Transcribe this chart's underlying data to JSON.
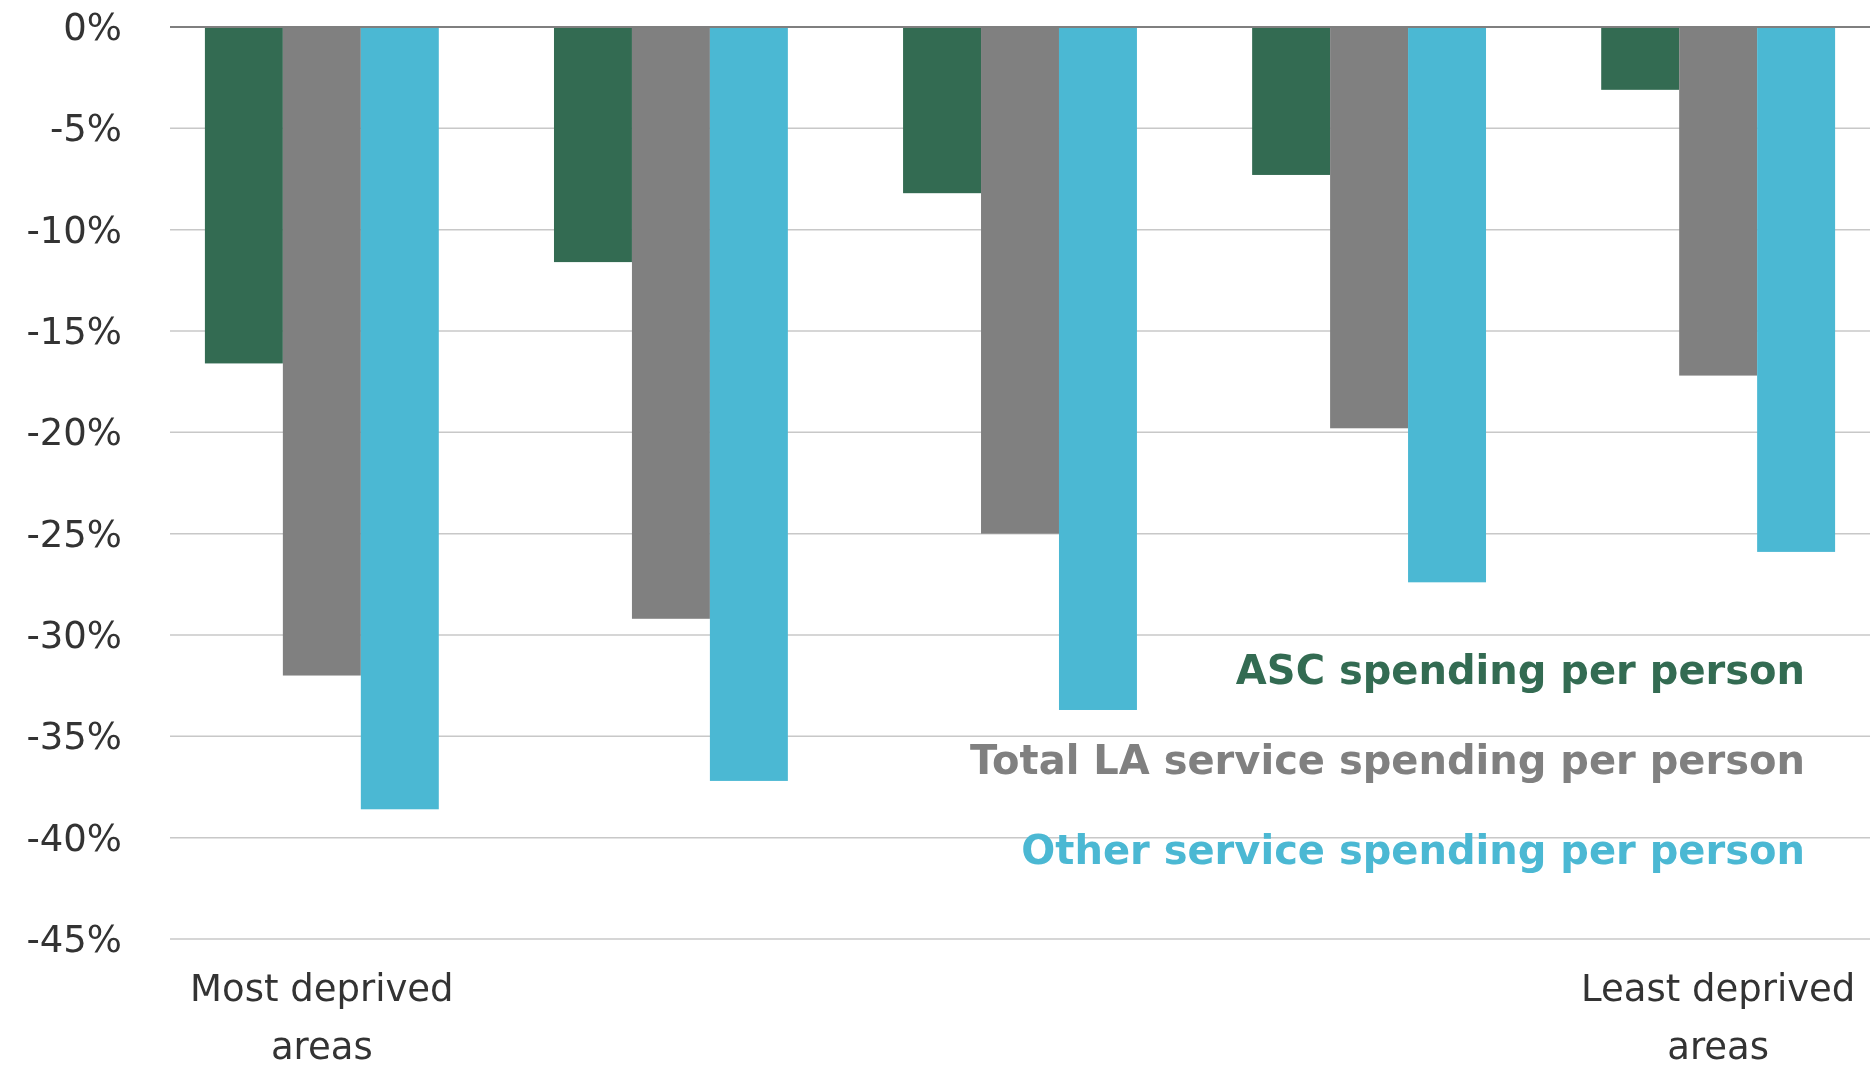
{
  "chart_data": {
    "type": "bar",
    "categories": [
      "Most deprived areas",
      null,
      null,
      null,
      "Least deprived areas"
    ],
    "series": [
      {
        "name": "ASC spending per person",
        "color": "#336b52",
        "values": [
          -16.6,
          -11.6,
          -8.2,
          -7.3,
          -3.1
        ]
      },
      {
        "name": "Total LA service spending per person",
        "color": "#808080",
        "values": [
          -32.0,
          -29.2,
          -25.0,
          -19.8,
          -17.2
        ]
      },
      {
        "name": "Other service spending per person",
        "color": "#4bb8d3",
        "values": [
          -38.6,
          -37.2,
          -33.7,
          -27.4,
          -25.9
        ]
      }
    ],
    "ylim": [
      -45,
      0
    ],
    "yticks": [
      {
        "value": 0,
        "label": "0%"
      },
      {
        "value": -5,
        "label": "-5%"
      },
      {
        "value": -10,
        "label": "-10%"
      },
      {
        "value": -15,
        "label": "-15%"
      },
      {
        "value": -20,
        "label": "-20%"
      },
      {
        "value": -25,
        "label": "-25%"
      },
      {
        "value": -30,
        "label": "-30%"
      },
      {
        "value": -35,
        "label": "-35%"
      },
      {
        "value": -40,
        "label": "-40%"
      },
      {
        "value": -45,
        "label": "-45%"
      }
    ],
    "grid": "y",
    "legend": "bottom right"
  }
}
